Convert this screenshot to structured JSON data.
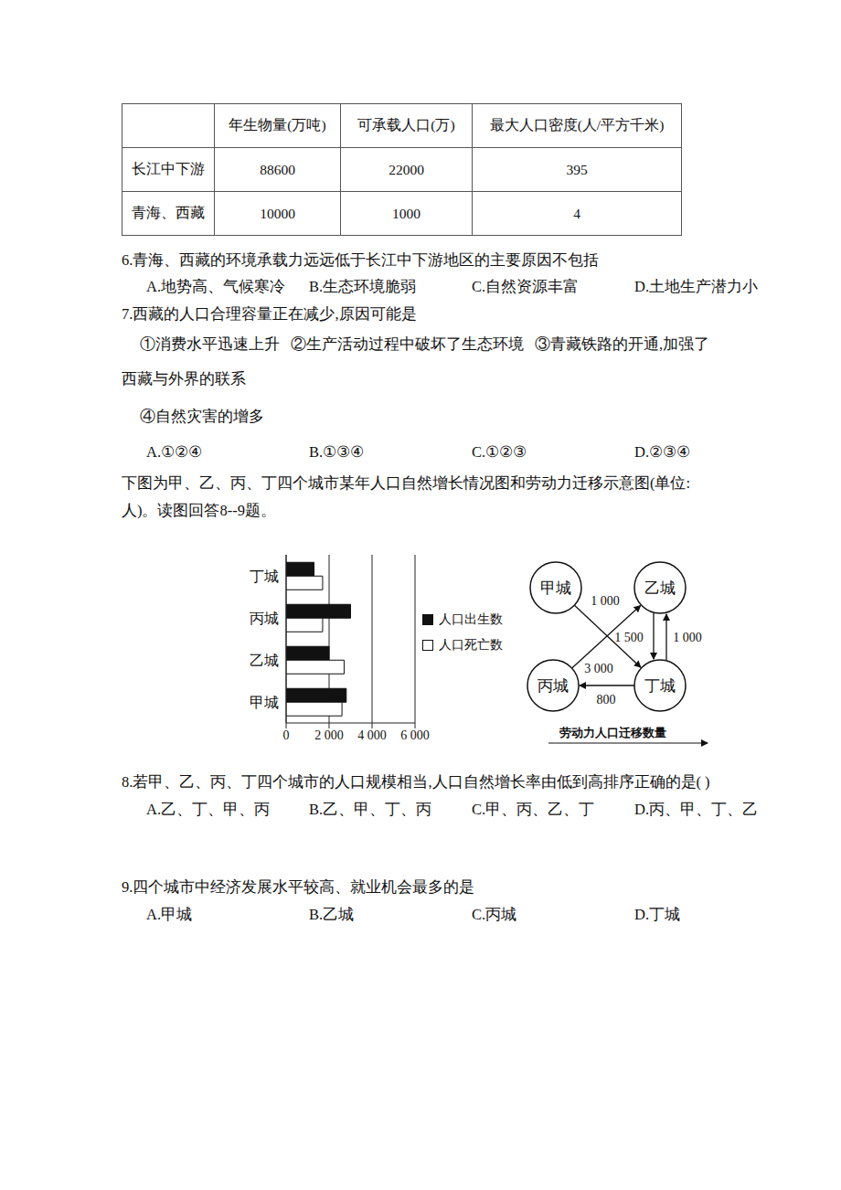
{
  "table": {
    "header": [
      "",
      "年生物量(万吨)",
      "可承载人口(万)",
      "最大人口密度(人/平方千米)"
    ],
    "rows": [
      [
        "长江中下游",
        88600,
        22000,
        395
      ],
      [
        "青海、西藏",
        10000,
        1000,
        4
      ]
    ]
  },
  "questions": [
    {
      "stem": "6.青海、西藏的环境承载力远远低于长江中下游地区的主要原因不包括",
      "options": [
        "A.地势高、气候寒冷",
        "B.生态环境脆弱",
        "C.自然资源丰富",
        "D.土地生产潜力小"
      ]
    },
    {
      "stem": "7.西藏的人口合理容量正在减少,原因可能是",
      "statements": [
        "①消费水平迅速上升",
        "②生产活动过程中破坏了生态环境",
        "③青藏铁路的开通,加强了西藏与外界的联系",
        "④自然灾害的增多"
      ],
      "options": [
        "A.①②④",
        "B.①③④",
        "C.①②③",
        "D.②③④"
      ]
    },
    {
      "stem": "8.若甲、乙、丙、丁四个城市的人口规模相当,人口自然增长率由低到高排序正确的是(    )",
      "options": [
        "A.乙、丁、甲、丙",
        "B.乙、甲、丁、丙",
        "C.甲、丙、乙、丁",
        "D.丙、甲、丁、乙"
      ]
    },
    {
      "stem": "9.四个城市中经济发展水平较高、就业机会最多的是",
      "options": [
        "A.甲城",
        "B.乙城",
        "C.丙城",
        "D.丁城"
      ]
    }
  ],
  "intro": "下图为甲、乙、丙、丁四个城市某年人口自然增长情况图和劳动力迁移示意图(单位:人)。读图回答8--9题。",
  "chart_data": {
    "type": "bar",
    "orientation": "horizontal",
    "categories": [
      "丁城",
      "丙城",
      "乙城",
      "甲城"
    ],
    "series": [
      {
        "name": "人口出生数",
        "color": "#111111",
        "values": [
          1300,
          3000,
          2000,
          2800
        ]
      },
      {
        "name": "人口死亡数",
        "color": "#ffffff",
        "values": [
          1700,
          1700,
          2700,
          2600
        ]
      }
    ],
    "xlim": [
      0,
      6000
    ],
    "xticks": [
      0,
      {
        "value": 2000,
        "label": "2 000"
      },
      {
        "value": 4000,
        "label": "4 000"
      },
      {
        "value": 6000,
        "label": "6 000"
      }
    ],
    "grid": true,
    "legend": "right"
  },
  "diagram": {
    "nodes": [
      "甲城",
      "乙城",
      "丙城",
      "丁城"
    ],
    "edges": [
      {
        "from": "甲城",
        "to": "丁城",
        "value": 1000,
        "label": "1 000"
      },
      {
        "from": "丙城",
        "to": "乙城",
        "value": 3000,
        "label": "3 000"
      },
      {
        "from": "乙城",
        "to": "丁城",
        "value": 1500,
        "label": "1 500"
      },
      {
        "from": "丁城",
        "to": "乙城",
        "value": 1000,
        "label": "1 000"
      },
      {
        "from": "丁城",
        "to": "丙城",
        "value": 800,
        "label": "800"
      }
    ],
    "caption": "劳动力人口迁移数量"
  }
}
